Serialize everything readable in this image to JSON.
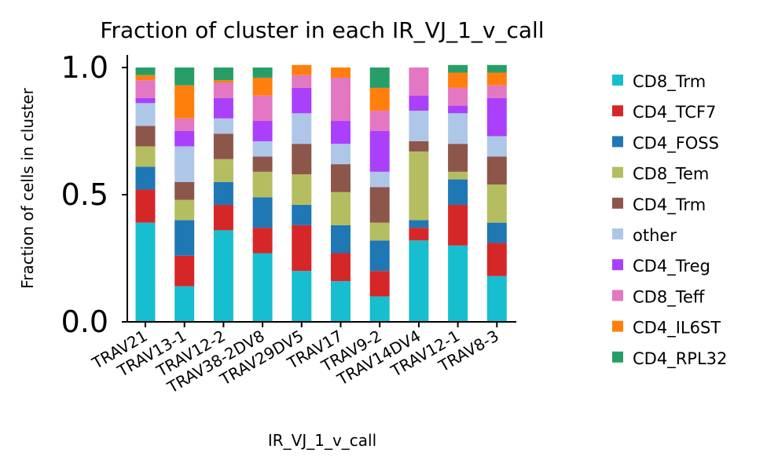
{
  "chart_data": {
    "type": "bar",
    "stacked": true,
    "title": "Fraction of cluster in each IR_VJ_1_v_call",
    "xlabel": "IR_VJ_1_v_call",
    "ylabel": "Fraction of cells in cluster",
    "ylim": [
      0,
      1
    ],
    "yticks": [
      "0.0",
      "0.5",
      "1.0"
    ],
    "yticks_values": [
      0,
      0.5,
      1.0
    ],
    "legend_position": "right",
    "categories": [
      "TRAV21",
      "TRAV13-1",
      "TRAV12-2",
      "TRAV38-2DV8",
      "TRAV29DV5",
      "TRAV17",
      "TRAV9-2",
      "TRAV14DV4",
      "TRAV12-1",
      "TRAV8-3"
    ],
    "series": [
      {
        "name": "CD8_Trm",
        "color": "#17becf",
        "values": [
          0.39,
          0.14,
          0.36,
          0.27,
          0.2,
          0.16,
          0.1,
          0.32,
          0.3,
          0.18
        ]
      },
      {
        "name": "CD4_TCF7",
        "color": "#d62728",
        "values": [
          0.13,
          0.12,
          0.1,
          0.1,
          0.18,
          0.11,
          0.1,
          0.05,
          0.16,
          0.13
        ]
      },
      {
        "name": "CD4_FOSS",
        "color": "#1f77b4",
        "values": [
          0.09,
          0.14,
          0.09,
          0.12,
          0.08,
          0.11,
          0.12,
          0.03,
          0.1,
          0.08
        ]
      },
      {
        "name": "CD8_Tem",
        "color": "#b5bd61",
        "values": [
          0.08,
          0.08,
          0.09,
          0.1,
          0.12,
          0.13,
          0.07,
          0.27,
          0.03,
          0.15
        ]
      },
      {
        "name": "CD4_Trm",
        "color": "#8c564b",
        "values": [
          0.08,
          0.07,
          0.1,
          0.06,
          0.12,
          0.11,
          0.14,
          0.04,
          0.11,
          0.11
        ]
      },
      {
        "name": "other",
        "color": "#aec7e8",
        "values": [
          0.09,
          0.14,
          0.06,
          0.06,
          0.12,
          0.08,
          0.06,
          0.12,
          0.12,
          0.08
        ]
      },
      {
        "name": "CD4_Treg",
        "color": "#aa40fc",
        "values": [
          0.02,
          0.06,
          0.08,
          0.08,
          0.1,
          0.09,
          0.16,
          0.06,
          0.03,
          0.15
        ]
      },
      {
        "name": "CD8_Teff",
        "color": "#e377c2",
        "values": [
          0.07,
          0.05,
          0.06,
          0.1,
          0.05,
          0.17,
          0.08,
          0.11,
          0.07,
          0.05
        ]
      },
      {
        "name": "CD4_IL6ST",
        "color": "#ff7f0e",
        "values": [
          0.02,
          0.13,
          0.01,
          0.07,
          0.04,
          0.04,
          0.09,
          0.0,
          0.06,
          0.05
        ]
      },
      {
        "name": "CD4_RPL32",
        "color": "#279e68",
        "values": [
          0.03,
          0.07,
          0.05,
          0.04,
          0.0,
          0.0,
          0.08,
          0.0,
          0.03,
          0.03
        ]
      }
    ]
  }
}
